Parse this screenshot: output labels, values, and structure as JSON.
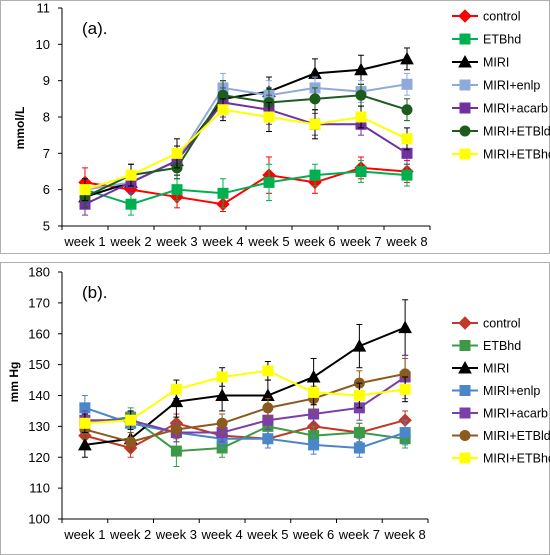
{
  "chart_data": [
    {
      "type": "line",
      "title": "(a).",
      "xlabel": "",
      "ylabel": "mmol/L",
      "ylim": [
        5,
        11
      ],
      "yticks": [
        5,
        6,
        7,
        8,
        9,
        10,
        11
      ],
      "grid": false,
      "legend": "right",
      "categories": [
        "week 1",
        "week 2",
        "week 3",
        "week 4",
        "week 5",
        "week 6",
        "week 7",
        "week 8"
      ],
      "series": [
        {
          "name": "control",
          "color": "#ff0000",
          "marker": "diamond",
          "values": [
            6.2,
            6.0,
            5.8,
            5.6,
            6.4,
            6.2,
            6.6,
            6.5
          ],
          "errors": [
            0.4,
            0.3,
            0.3,
            0.2,
            0.5,
            0.3,
            0.3,
            0.3
          ]
        },
        {
          "name": "ETBhd",
          "color": "#00b050",
          "marker": "square",
          "values": [
            6.0,
            5.6,
            6.0,
            5.9,
            6.2,
            6.4,
            6.5,
            6.4
          ],
          "errors": [
            0.3,
            0.3,
            0.3,
            0.4,
            0.5,
            0.3,
            0.3,
            0.3
          ]
        },
        {
          "name": "MIRI",
          "color": "#000000",
          "marker": "triangle",
          "values": [
            5.8,
            6.2,
            6.8,
            8.5,
            8.7,
            9.2,
            9.3,
            9.6
          ],
          "errors": [
            0.3,
            0.3,
            0.4,
            0.5,
            0.4,
            0.4,
            0.4,
            0.3
          ]
        },
        {
          "name": "MIRI+enlp",
          "color": "#8eaadb",
          "marker": "square",
          "values": [
            6.0,
            6.2,
            6.8,
            8.8,
            8.6,
            8.8,
            8.7,
            8.9
          ],
          "errors": [
            0.3,
            0.3,
            0.3,
            0.4,
            0.4,
            0.3,
            0.3,
            0.3
          ]
        },
        {
          "name": "MIRI+acarb",
          "color": "#7030a0",
          "marker": "square",
          "values": [
            5.6,
            6.2,
            6.8,
            8.4,
            8.2,
            7.8,
            7.8,
            7.0
          ],
          "errors": [
            0.3,
            0.3,
            0.3,
            0.4,
            0.4,
            0.3,
            0.3,
            0.3
          ]
        },
        {
          "name": "MIRI+ETBld",
          "color": "#1e5c1e",
          "marker": "circle",
          "values": [
            5.8,
            6.4,
            6.6,
            8.6,
            8.4,
            8.5,
            8.6,
            8.2
          ],
          "errors": [
            0.3,
            0.3,
            0.3,
            0.4,
            0.4,
            0.3,
            0.3,
            0.3
          ]
        },
        {
          "name": "MIRI+ETBhd",
          "color": "#ffff00",
          "marker": "square",
          "values": [
            6.0,
            6.4,
            7.0,
            8.2,
            8.0,
            7.8,
            8.0,
            7.4
          ],
          "errors": [
            0.3,
            0.3,
            0.4,
            0.3,
            0.4,
            0.4,
            0.3,
            0.3
          ]
        }
      ]
    },
    {
      "type": "line",
      "title": "(b).",
      "xlabel": "",
      "ylabel": "mm Hg",
      "ylim": [
        100,
        180
      ],
      "yticks": [
        100,
        110,
        120,
        130,
        140,
        150,
        160,
        170,
        180
      ],
      "grid": false,
      "legend": "right",
      "categories": [
        "week 1",
        "week 2",
        "week 3",
        "week 4",
        "week 5",
        "week 6",
        "week 7",
        "week 8"
      ],
      "series": [
        {
          "name": "control",
          "color": "#c0392b",
          "marker": "diamond",
          "values": [
            127,
            123,
            131,
            127,
            126,
            130,
            128,
            132
          ],
          "errors": [
            3,
            3,
            3,
            3,
            3,
            3,
            3,
            3
          ]
        },
        {
          "name": "ETBhd",
          "color": "#3c9a47",
          "marker": "square",
          "values": [
            131,
            133,
            122,
            123,
            130,
            127,
            128,
            126
          ],
          "errors": [
            3,
            3,
            5,
            3,
            3,
            3,
            3,
            3
          ]
        },
        {
          "name": "MIRI",
          "color": "#000000",
          "marker": "triangle",
          "values": [
            124,
            126,
            138,
            140,
            140,
            146,
            156,
            162
          ],
          "errors": [
            4,
            4,
            5,
            5,
            5,
            6,
            7,
            9
          ]
        },
        {
          "name": "MIRI+enlp",
          "color": "#4a86c8",
          "marker": "square",
          "values": [
            136,
            131,
            128,
            126,
            126,
            124,
            123,
            128
          ],
          "errors": [
            4,
            3,
            3,
            3,
            3,
            3,
            3,
            4
          ]
        },
        {
          "name": "MIRI+acarb",
          "color": "#7a3fa8",
          "marker": "square",
          "values": [
            132,
            132,
            128,
            128,
            132,
            134,
            136,
            146
          ],
          "errors": [
            3,
            3,
            3,
            3,
            3,
            3,
            4,
            7
          ]
        },
        {
          "name": "MIRI+ETBld",
          "color": "#8b5a1e",
          "marker": "circle",
          "values": [
            129,
            125,
            129,
            131,
            136,
            139,
            144,
            147
          ],
          "errors": [
            3,
            3,
            3,
            3,
            3,
            4,
            4,
            5
          ]
        },
        {
          "name": "MIRI+ETBhd",
          "color": "#ffff00",
          "marker": "square",
          "values": [
            131,
            132,
            142,
            146,
            148,
            141,
            140,
            142
          ],
          "errors": [
            3,
            3,
            3,
            3,
            3,
            4,
            4,
            4
          ]
        }
      ]
    }
  ]
}
